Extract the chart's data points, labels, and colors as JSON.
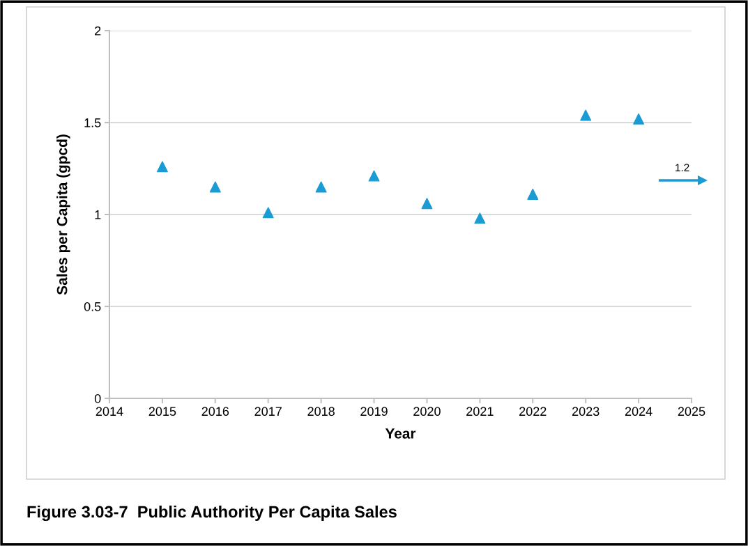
{
  "chart_data": {
    "type": "scatter",
    "title": "Figure 3.03-7  Public Authority Per Capita Sales",
    "xlabel": "Year",
    "ylabel": "Sales per Capita (gpcd)",
    "x": [
      2015,
      2016,
      2017,
      2018,
      2019,
      2020,
      2021,
      2022,
      2023,
      2024
    ],
    "series": [
      {
        "color": "#1a9bd3",
        "values": [
          1.26,
          1.15,
          1.01,
          1.15,
          1.21,
          1.06,
          0.98,
          1.11,
          1.54,
          1.52
        ]
      }
    ],
    "annotations": [
      "1.2"
    ],
    "xlim": [
      2014,
      2025
    ],
    "xticks": [
      2014,
      2015,
      2016,
      2017,
      2018,
      2019,
      2020,
      2021,
      2022,
      2023,
      2024,
      2025
    ],
    "ylim": [
      0,
      2
    ],
    "yticks": [
      0,
      0.5,
      1,
      1.5,
      2
    ],
    "grid": "y",
    "marker": "triangle"
  }
}
